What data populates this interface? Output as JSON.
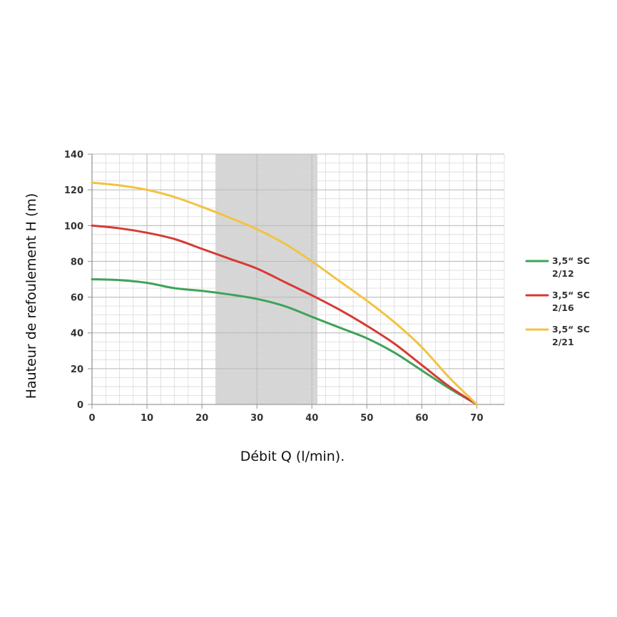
{
  "chart_data": {
    "type": "line",
    "xlabel": "Débit Q (l/min).",
    "ylabel": "Hauteur de refoulement H (m)",
    "xlim": [
      0,
      75
    ],
    "ylim": [
      0,
      140
    ],
    "x_ticks": [
      "0",
      "10",
      "20",
      "30",
      "40",
      "50",
      "60",
      "70"
    ],
    "y_ticks": [
      "0",
      "20",
      "40",
      "60",
      "80",
      "100",
      "120",
      "140"
    ],
    "grid": true,
    "legend_position": "right",
    "shaded_band": {
      "x_start": 22.5,
      "x_end": 41,
      "color": "#d6d6d6"
    },
    "series": [
      {
        "name_line1": "3,5“ SC",
        "name_line2": "2/12",
        "color": "#3ea35b",
        "points": [
          [
            0,
            70
          ],
          [
            5,
            69.5
          ],
          [
            10,
            68
          ],
          [
            15,
            65
          ],
          [
            20,
            63.5
          ],
          [
            25,
            61.5
          ],
          [
            30,
            59
          ],
          [
            35,
            55
          ],
          [
            40,
            49
          ],
          [
            45,
            43
          ],
          [
            50,
            37
          ],
          [
            55,
            29
          ],
          [
            60,
            19
          ],
          [
            65,
            9
          ],
          [
            70,
            0
          ]
        ]
      },
      {
        "name_line1": "3,5“ SC",
        "name_line2": "2/16",
        "color": "#d63b34",
        "points": [
          [
            0,
            100
          ],
          [
            5,
            98.5
          ],
          [
            10,
            96
          ],
          [
            15,
            92.5
          ],
          [
            20,
            87
          ],
          [
            25,
            81.5
          ],
          [
            30,
            76
          ],
          [
            35,
            68.5
          ],
          [
            40,
            61
          ],
          [
            45,
            53
          ],
          [
            50,
            44
          ],
          [
            55,
            34
          ],
          [
            60,
            22
          ],
          [
            65,
            10
          ],
          [
            70,
            0
          ]
        ]
      },
      {
        "name_line1": "3,5“ SC",
        "name_line2": "2/21",
        "color": "#f2c341",
        "points": [
          [
            0,
            124
          ],
          [
            5,
            122.5
          ],
          [
            10,
            120
          ],
          [
            15,
            116
          ],
          [
            20,
            110.5
          ],
          [
            25,
            104.5
          ],
          [
            30,
            98
          ],
          [
            35,
            90
          ],
          [
            40,
            80
          ],
          [
            45,
            69
          ],
          [
            50,
            58
          ],
          [
            55,
            46
          ],
          [
            60,
            32
          ],
          [
            65,
            15
          ],
          [
            70,
            0
          ]
        ]
      }
    ]
  }
}
